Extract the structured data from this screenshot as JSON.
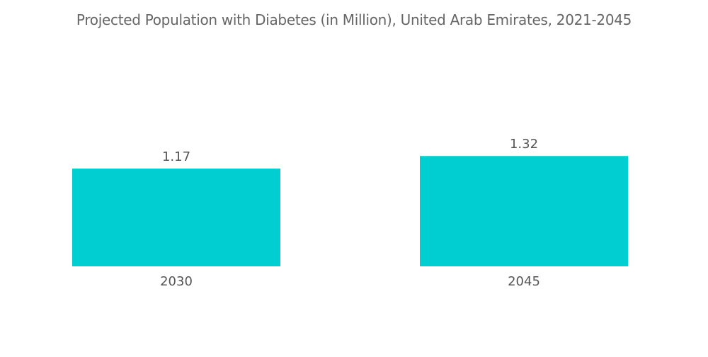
{
  "chart_data": {
    "type": "bar",
    "title": "Projected Population with Diabetes (in Million), United Arab Emirates, 2021-2045",
    "categories": [
      "2030",
      "2045"
    ],
    "values": [
      1.17,
      1.32
    ],
    "data_labels": [
      "1.17",
      "1.32"
    ],
    "xlabel": "",
    "ylabel": "",
    "ylim": [
      0,
      1.32
    ],
    "grid": false,
    "y_axis_visible": false,
    "bar_color": "#00CED1"
  }
}
